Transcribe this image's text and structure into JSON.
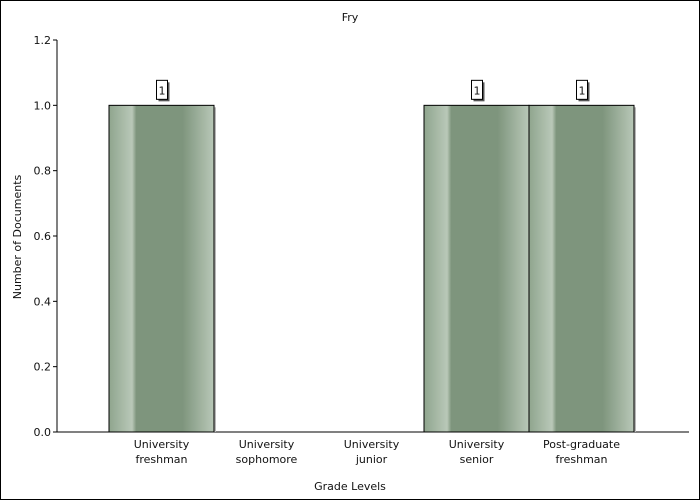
{
  "chart_data": {
    "type": "bar",
    "title": "Fry",
    "xlabel": "Grade Levels",
    "ylabel": "Number of Documents",
    "categories": [
      [
        "University",
        "freshman"
      ],
      [
        "University",
        "sophomore"
      ],
      [
        "University",
        "junior"
      ],
      [
        "University",
        "senior"
      ],
      [
        "Post-graduate",
        "freshman"
      ]
    ],
    "values": [
      1,
      0,
      0,
      1,
      1
    ],
    "data_labels": [
      "1",
      "",
      "",
      "1",
      "1"
    ],
    "ylim": [
      0,
      1.2
    ],
    "yticks": [
      "0.0",
      "0.2",
      "0.4",
      "0.6",
      "0.8",
      "1.0",
      "1.2"
    ],
    "grid": false,
    "legend": "none",
    "bar_colors": {
      "base": "#8fa58e",
      "light": "#b9c8b8",
      "dark": "#7e957d",
      "outline": "#000000"
    }
  }
}
